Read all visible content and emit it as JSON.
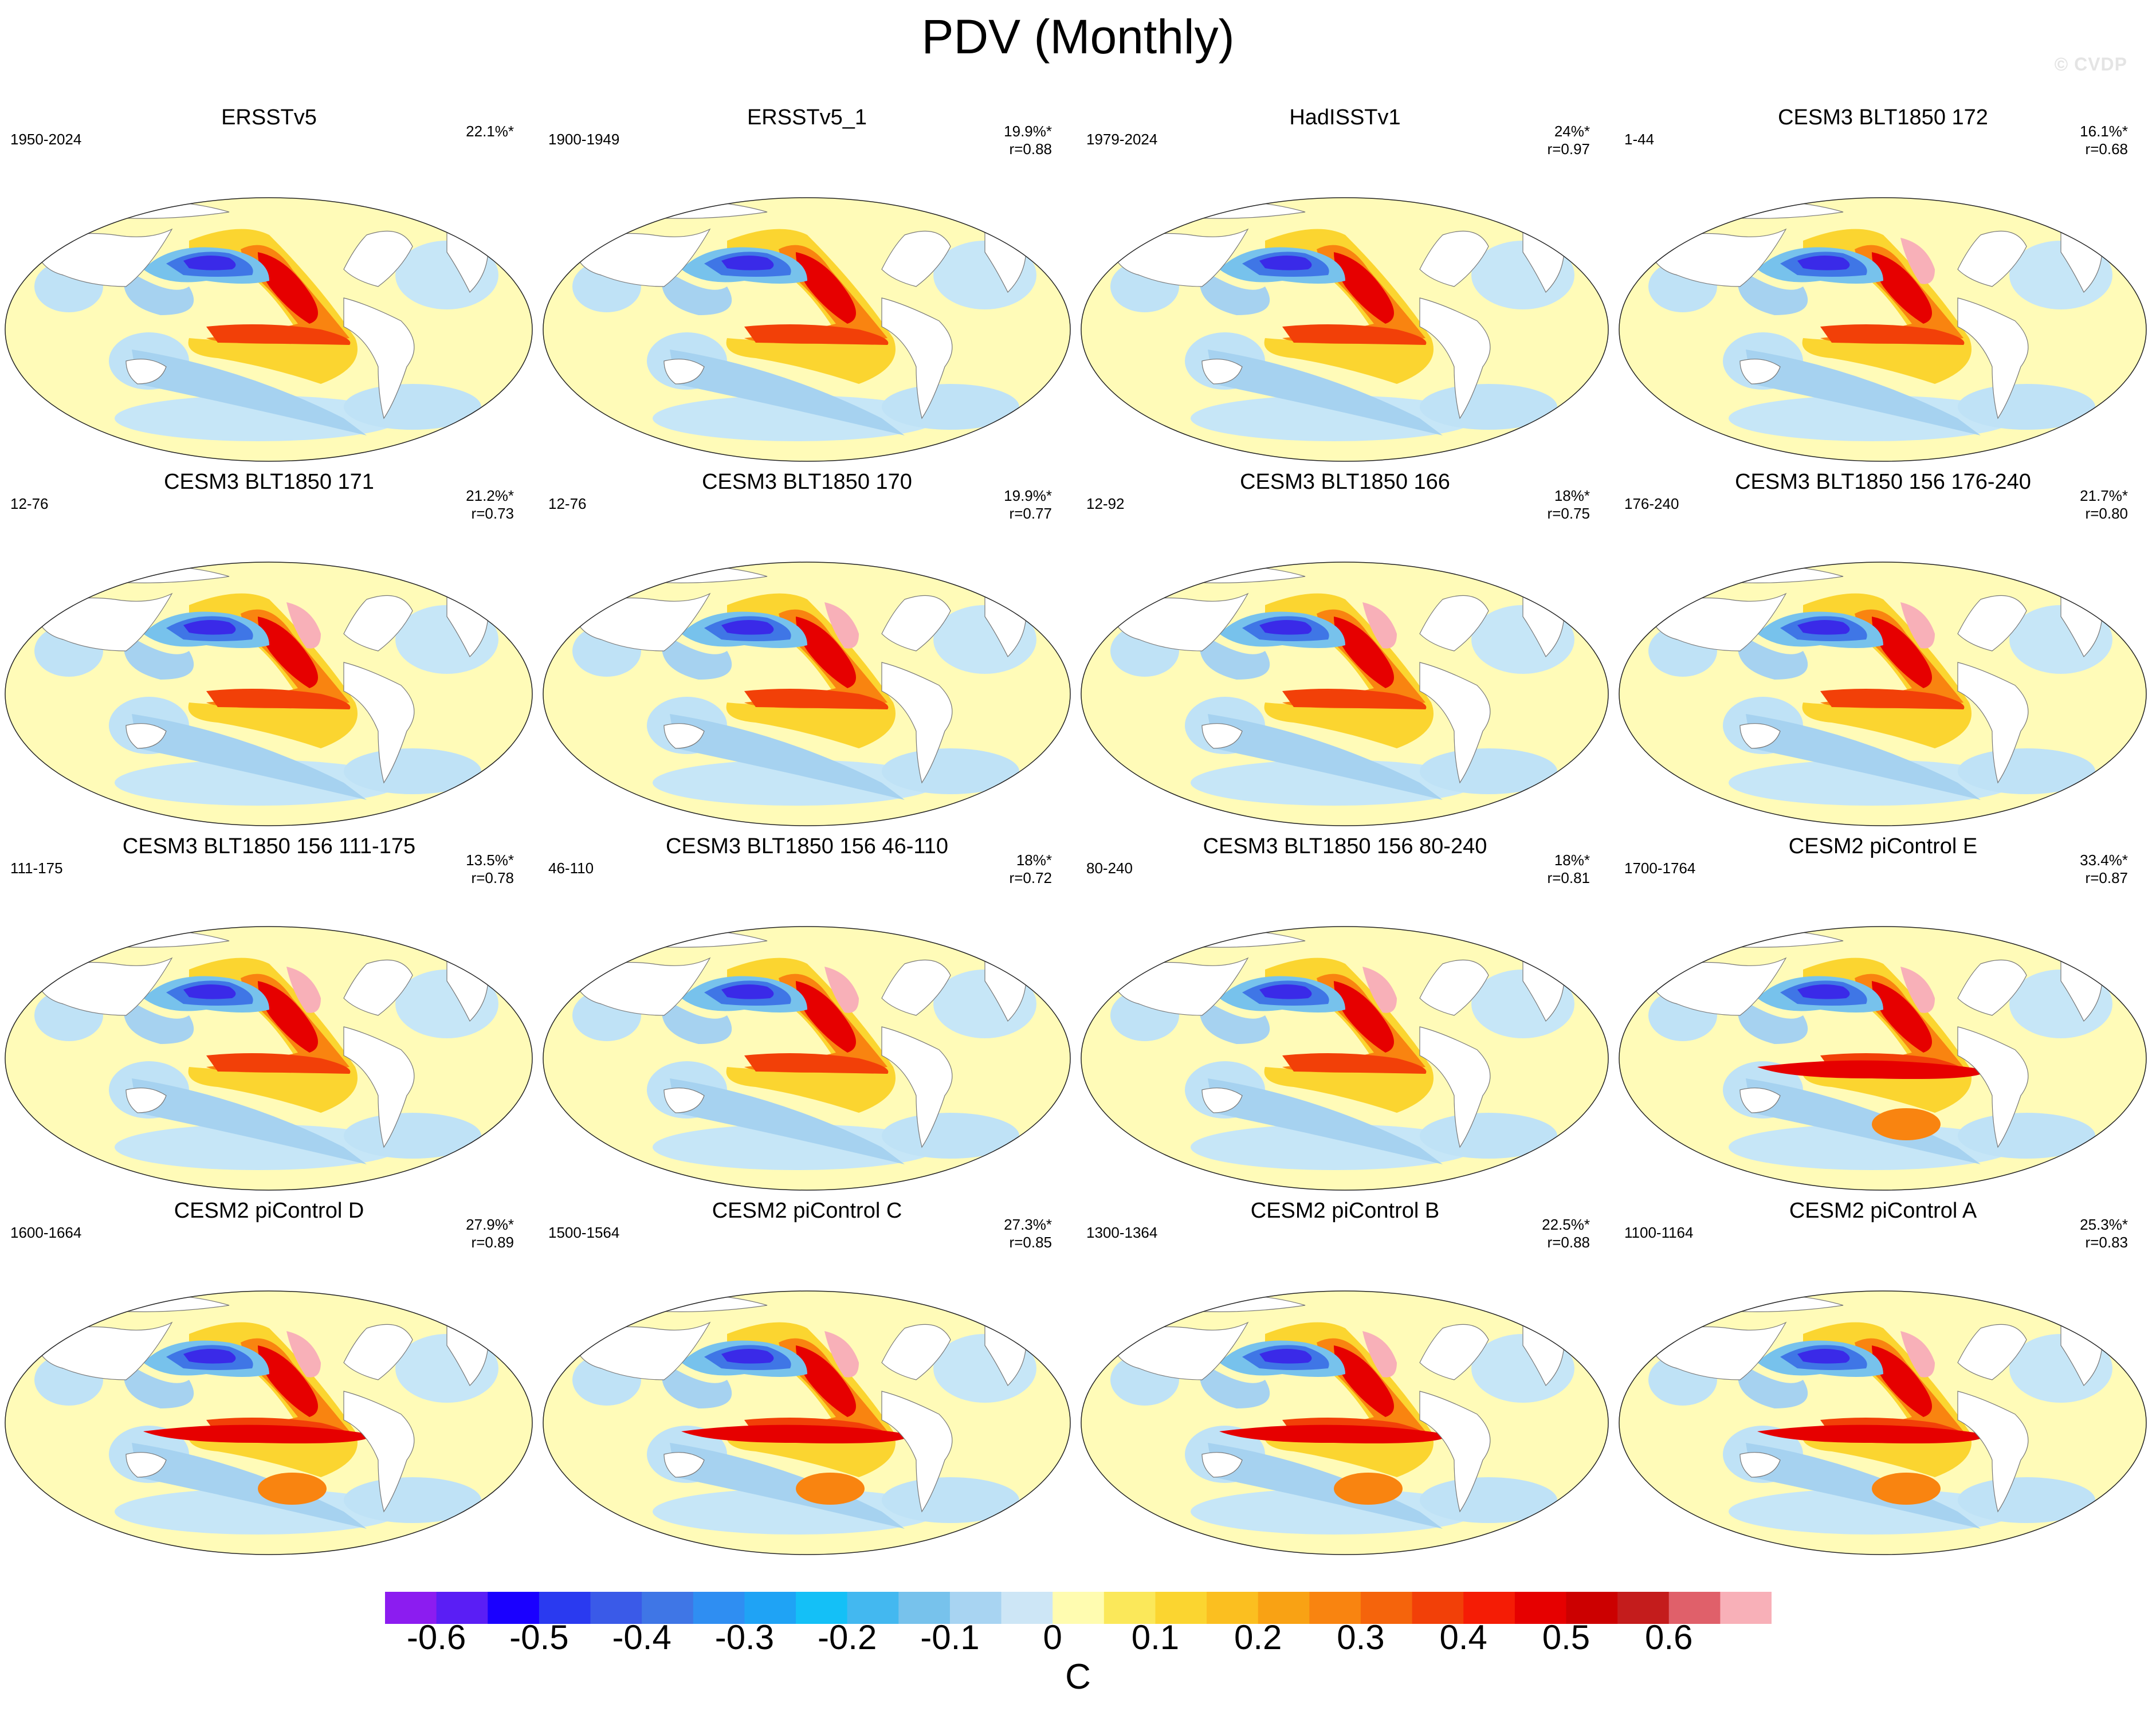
{
  "title": "PDV (Monthly)",
  "watermark": "© CVDP",
  "panels": [
    {
      "title": "ERSSTv5",
      "years": "1950-2024",
      "pct": "22.1%*",
      "r": "",
      "pattern": "obs"
    },
    {
      "title": "ERSSTv5_1",
      "years": "1900-1949",
      "pct": "19.9%*",
      "r": "r=0.88",
      "pattern": "obs"
    },
    {
      "title": "HadISSTv1",
      "years": "1979-2024",
      "pct": "24%*",
      "r": "r=0.97",
      "pattern": "obs"
    },
    {
      "title": "CESM3 BLT1850 172",
      "years": "1-44",
      "pct": "16.1%*",
      "r": "r=0.68",
      "pattern": "cesm3"
    },
    {
      "title": "CESM3 BLT1850 171",
      "years": "12-76",
      "pct": "21.2%*",
      "r": "r=0.73",
      "pattern": "cesm3"
    },
    {
      "title": "CESM3 BLT1850 170",
      "years": "12-76",
      "pct": "19.9%*",
      "r": "r=0.77",
      "pattern": "cesm3"
    },
    {
      "title": "CESM3 BLT1850 166",
      "years": "12-92",
      "pct": "18%*",
      "r": "r=0.75",
      "pattern": "cesm3"
    },
    {
      "title": "CESM3 BLT1850 156 176-240",
      "years": "176-240",
      "pct": "21.7%*",
      "r": "r=0.80",
      "pattern": "cesm3"
    },
    {
      "title": "CESM3 BLT1850 156 111-175",
      "years": "111-175",
      "pct": "13.5%*",
      "r": "r=0.78",
      "pattern": "cesm3"
    },
    {
      "title": "CESM3 BLT1850 156 46-110",
      "years": "46-110",
      "pct": "18%*",
      "r": "r=0.72",
      "pattern": "cesm3"
    },
    {
      "title": "CESM3 BLT1850 156 80-240",
      "years": "80-240",
      "pct": "18%*",
      "r": "r=0.81",
      "pattern": "cesm3"
    },
    {
      "title": "CESM2 piControl E",
      "years": "1700-1764",
      "pct": "33.4%*",
      "r": "r=0.87",
      "pattern": "cesm2"
    },
    {
      "title": "CESM2 piControl D",
      "years": "1600-1664",
      "pct": "27.9%*",
      "r": "r=0.89",
      "pattern": "cesm2"
    },
    {
      "title": "CESM2 piControl C",
      "years": "1500-1564",
      "pct": "27.3%*",
      "r": "r=0.85",
      "pattern": "cesm2"
    },
    {
      "title": "CESM2 piControl B",
      "years": "1300-1364",
      "pct": "22.5%*",
      "r": "r=0.88",
      "pattern": "cesm2"
    },
    {
      "title": "CESM2 piControl A",
      "years": "1100-1164",
      "pct": "25.3%*",
      "r": "r=0.83",
      "pattern": "cesm2"
    }
  ],
  "colorbar": {
    "colors": [
      "#8c1cf0",
      "#5a1ef5",
      "#1a00ff",
      "#2a3af0",
      "#3a5ae8",
      "#3f76e6",
      "#2f8ef2",
      "#1fa3f5",
      "#14c0f7",
      "#43b8f0",
      "#77c2ec",
      "#a8d4f2",
      "#cde6f6",
      "#fffcb0",
      "#fbe85a",
      "#fbd530",
      "#fbbf20",
      "#f9a214",
      "#f98410",
      "#f5640c",
      "#f24008",
      "#f51c05",
      "#e60000",
      "#cc0000",
      "#c41c1c",
      "#e0606a",
      "#f8b0b8"
    ],
    "ticks": [
      "-0.6",
      "-0.5",
      "-0.4",
      "-0.3",
      "-0.2",
      "-0.1",
      "0",
      "0.1",
      "0.2",
      "0.3",
      "0.4",
      "0.5",
      "0.6"
    ],
    "unit": "C"
  }
}
